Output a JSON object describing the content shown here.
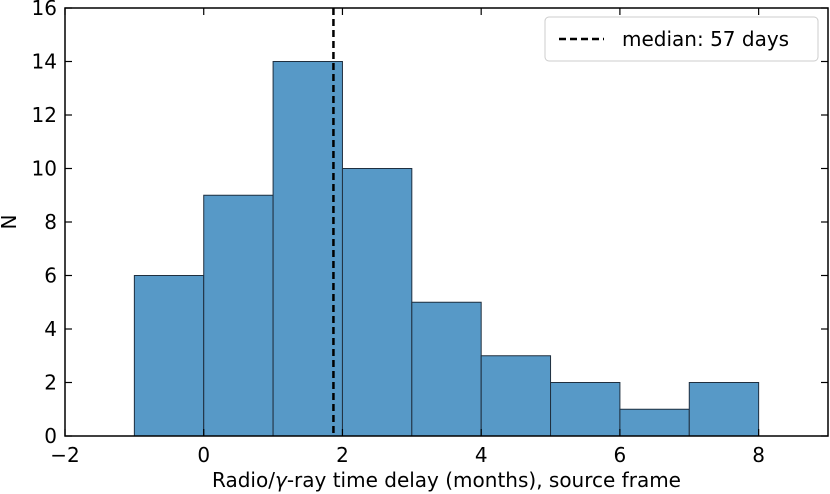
{
  "chart_data": {
    "type": "bar",
    "title": "",
    "xlabel_prefix": "Radio/",
    "xlabel_symbol": "γ",
    "xlabel_suffix": "-ray time delay (months), source frame",
    "ylabel": "N",
    "xlim": [
      -2,
      9
    ],
    "ylim": [
      0,
      16
    ],
    "x_ticks": [
      -2,
      0,
      2,
      4,
      6,
      8
    ],
    "x_tick_labels": [
      "−2",
      "0",
      "2",
      "4",
      "6",
      "8"
    ],
    "y_ticks": [
      0,
      2,
      4,
      6,
      8,
      10,
      12,
      14,
      16
    ],
    "y_tick_labels": [
      "0",
      "2",
      "4",
      "6",
      "8",
      "10",
      "12",
      "14",
      "16"
    ],
    "bin_edges": [
      -1,
      0,
      1,
      2,
      3,
      4,
      5,
      6,
      7,
      8
    ],
    "values": [
      6,
      9,
      14,
      10,
      5,
      3,
      2,
      1,
      2
    ],
    "bar_color": "#5799c7",
    "bar_edge_color": "#1f2f3f",
    "median_line": {
      "x": 1.87,
      "label": "median: 57 days",
      "color": "#000000"
    },
    "legend_position": "top-right",
    "grid": false
  }
}
